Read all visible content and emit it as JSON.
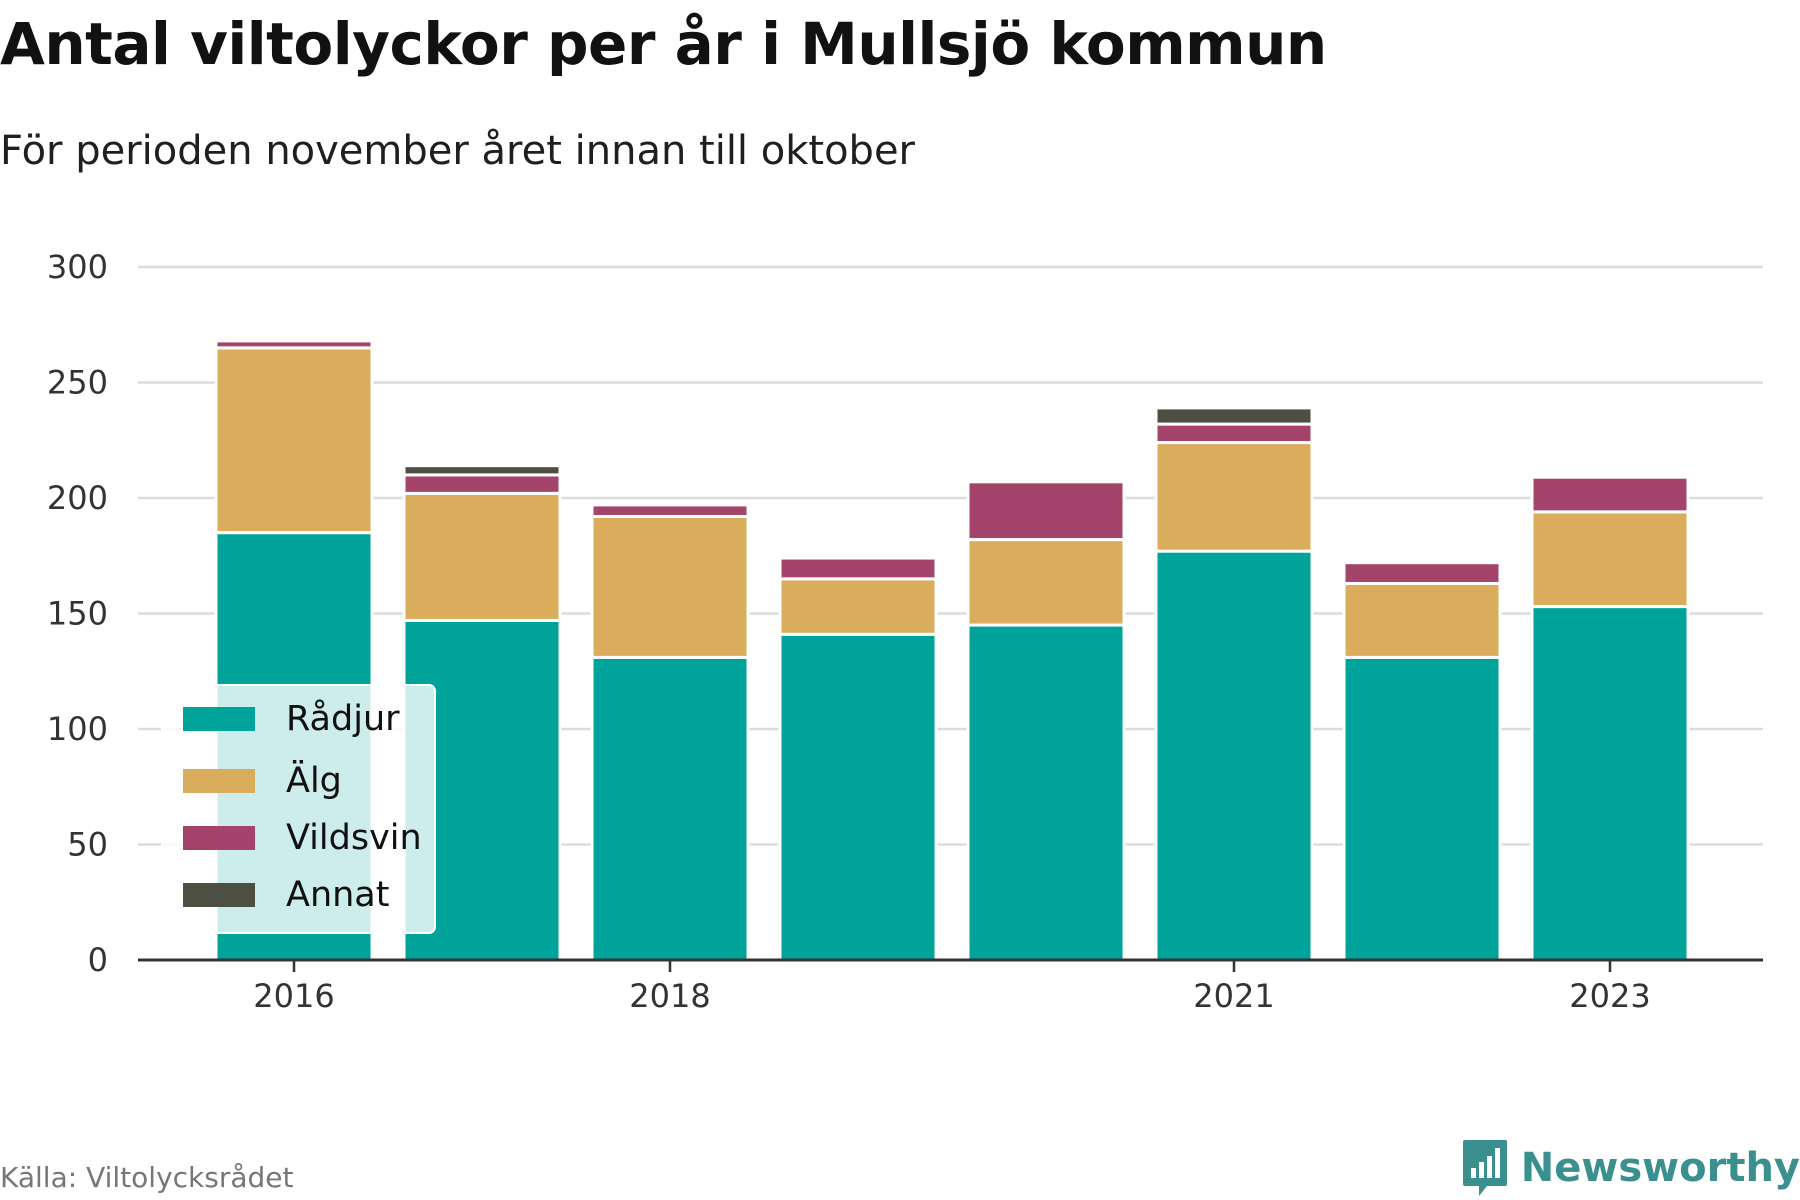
{
  "title": "Antal viltolyckor per år i Mullsjö kommun",
  "subtitle": "För perioden november året innan till oktober",
  "source": "Källa: Viltolycksrådet",
  "brand": {
    "name": "Newsworthy",
    "icon": "newsworthy-logo-icon",
    "color": "#3a8f8f"
  },
  "chart_data": {
    "type": "bar",
    "stacked": true,
    "categories": [
      2016,
      2017,
      2018,
      2019,
      2020,
      2021,
      2022,
      2023
    ],
    "x_tick_labels": [
      {
        "year": 2016,
        "label": "2016"
      },
      {
        "year": 2018,
        "label": "2018"
      },
      {
        "year": 2021,
        "label": "2021"
      },
      {
        "year": 2023,
        "label": "2023"
      }
    ],
    "series": [
      {
        "name": "Rådjur",
        "color": "#00a39a",
        "values": [
          185,
          147,
          131,
          141,
          145,
          177,
          131,
          153
        ]
      },
      {
        "name": "Älg",
        "color": "#d9ad5b",
        "values": [
          80,
          55,
          61,
          24,
          37,
          47,
          32,
          41
        ]
      },
      {
        "name": "Vildsvin",
        "color": "#a4446b",
        "values": [
          3,
          8,
          5,
          9,
          25,
          8,
          9,
          15
        ]
      },
      {
        "name": "Annat",
        "color": "#4d4f42",
        "values": [
          0,
          4,
          0,
          0,
          0,
          7,
          0,
          0
        ]
      }
    ],
    "ylim": [
      0,
      300
    ],
    "y_ticks": [
      0,
      50,
      100,
      150,
      200,
      250,
      300
    ],
    "grid": true,
    "legend_position": "bottom-left"
  }
}
